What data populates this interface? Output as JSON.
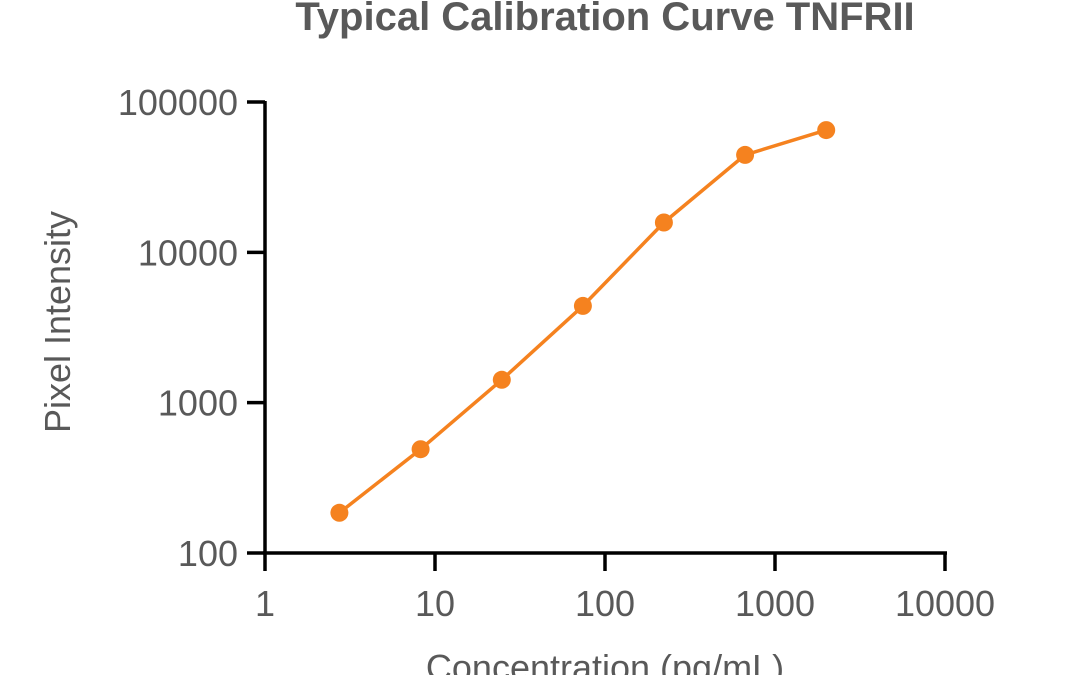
{
  "chart_data": {
    "type": "line",
    "title": "Typical Calibration Curve TNFRII",
    "xlabel": "Concentration (pg/mL)",
    "ylabel": "Pixel Intensity",
    "xscale": "log",
    "yscale": "log",
    "xlim": [
      1,
      10000
    ],
    "ylim": [
      100,
      100000
    ],
    "xticks": [
      1,
      10,
      100,
      1000,
      10000
    ],
    "yticks": [
      100,
      1000,
      10000,
      100000
    ],
    "xtick_labels": [
      "1",
      "10",
      "100",
      "1000",
      "10000"
    ],
    "ytick_labels": [
      "100",
      "1000",
      "10000",
      "100000"
    ],
    "grid": false,
    "series": [
      {
        "color": "#F5821F",
        "x": [
          2.74,
          8.23,
          24.7,
          74.1,
          222,
          667,
          2000
        ],
        "y": [
          185,
          490,
          1420,
          4400,
          15800,
          44500,
          65000
        ]
      }
    ]
  }
}
